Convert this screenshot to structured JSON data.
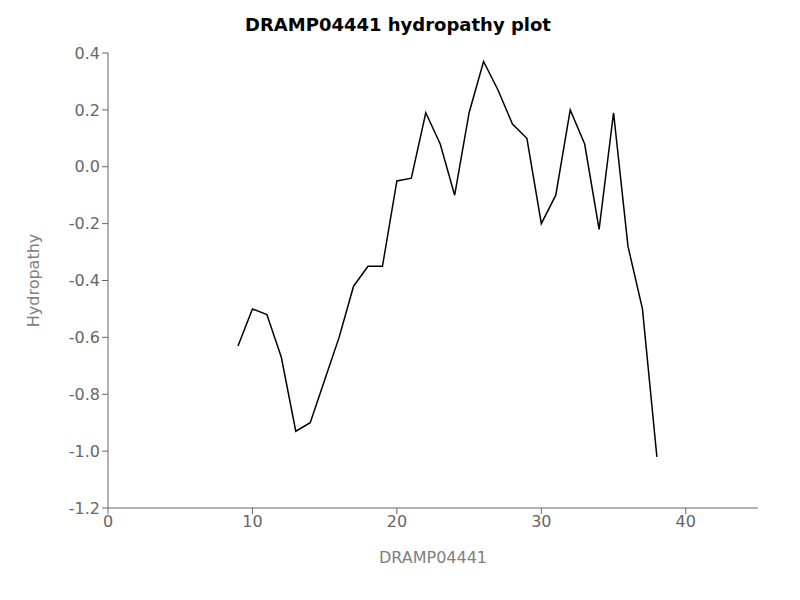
{
  "chart_data": {
    "type": "line",
    "title": "DRAMP04441 hydropathy plot",
    "xlabel": "DRAMP04441",
    "ylabel": "Hydropathy",
    "x": [
      9,
      10,
      11,
      12,
      13,
      14,
      15,
      16,
      17,
      18,
      19,
      20,
      21,
      22,
      23,
      24,
      25,
      26,
      27,
      28,
      29,
      30,
      31,
      32,
      33,
      34,
      35,
      36,
      37,
      38
    ],
    "values": [
      -0.63,
      -0.5,
      -0.52,
      -0.67,
      -0.93,
      -0.9,
      -0.75,
      -0.6,
      -0.42,
      -0.35,
      -0.35,
      -0.05,
      -0.04,
      0.19,
      0.08,
      -0.1,
      0.19,
      0.37,
      0.27,
      0.15,
      0.1,
      -0.2,
      -0.1,
      0.2,
      0.08,
      -0.22,
      0.19,
      -0.28,
      -0.5,
      -1.02
    ],
    "color": "black",
    "xlim": [
      0,
      45
    ],
    "ylim": [
      -1.2,
      0.4
    ],
    "xticks": [
      0,
      10,
      20,
      30,
      40
    ],
    "yticks": [
      -1.2,
      {
        "value": -1.0,
        "label": "-1.0"
      },
      -0.8,
      -0.6,
      -0.4,
      -0.2,
      {
        "value": 0.0,
        "label": "0.0"
      },
      0.2,
      0.4
    ],
    "grid": false
  }
}
